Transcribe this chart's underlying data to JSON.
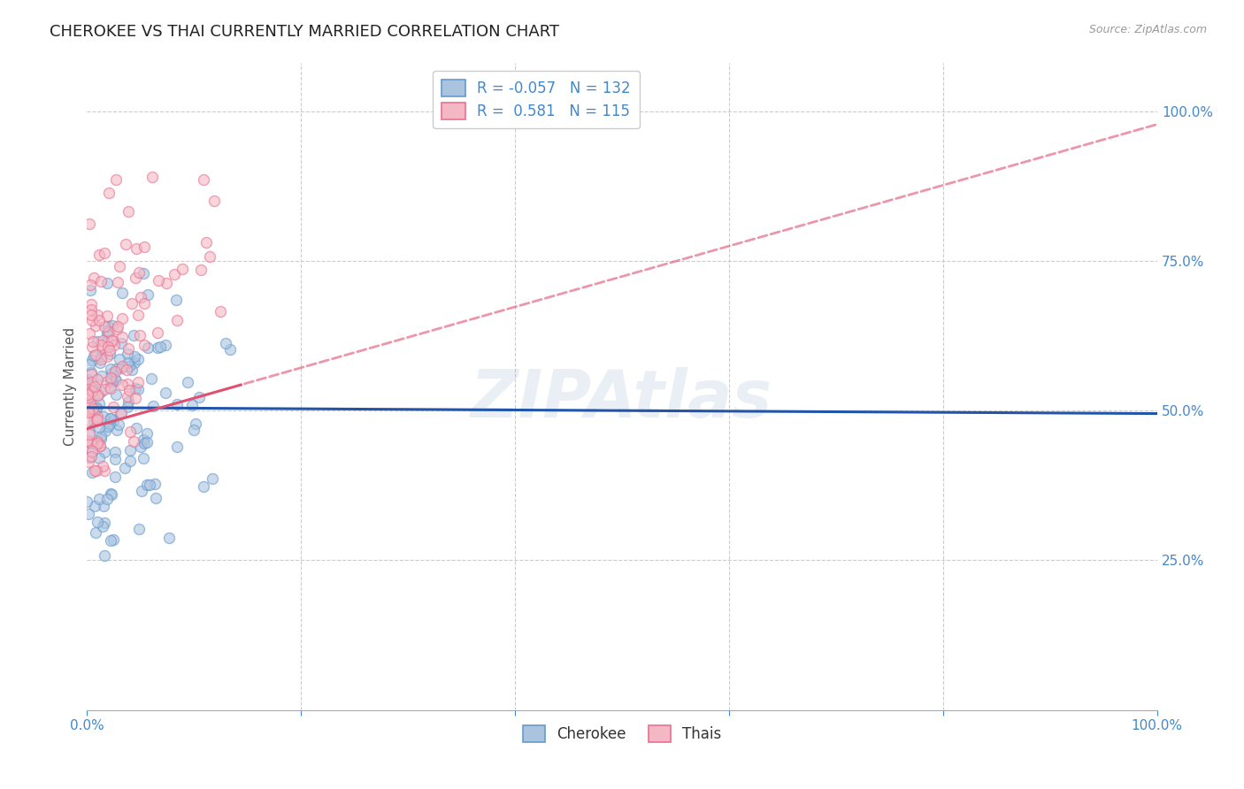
{
  "title": "CHEROKEE VS THAI CURRENTLY MARRIED CORRELATION CHART",
  "source": "Source: ZipAtlas.com",
  "ylabel": "Currently Married",
  "ytick_labels": [
    "100.0%",
    "75.0%",
    "50.0%",
    "25.0%"
  ],
  "ytick_values": [
    1.0,
    0.75,
    0.5,
    0.25
  ],
  "xlim": [
    0.0,
    1.0
  ],
  "ylim": [
    0.0,
    1.08
  ],
  "cherokee_color": "#aac4e0",
  "cherokee_edge": "#6699cc",
  "thai_color": "#f4b8c4",
  "thai_edge": "#e87090",
  "cherokee_line_color": "#2255aa",
  "thai_line_color": "#e05070",
  "cherokee_R": -0.057,
  "cherokee_N": 132,
  "thai_R": 0.581,
  "thai_N": 115,
  "legend_label_cherokee": "Cherokee",
  "legend_label_thai": "Thais",
  "watermark": "ZIPAtlas",
  "background_color": "#ffffff",
  "grid_color": "#cccccc",
  "title_fontsize": 13,
  "axis_label_color": "#4488cc",
  "scatter_alpha": 0.6,
  "scatter_size": 75,
  "scatter_linewidth": 1.0
}
